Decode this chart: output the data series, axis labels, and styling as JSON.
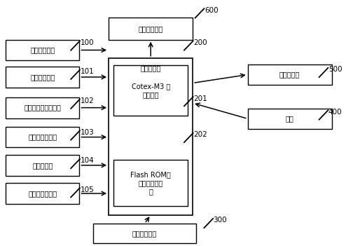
{
  "left_blocks": [
    {
      "label": "风速测量模块",
      "row": 0
    },
    {
      "label": "风向测量模块",
      "row": 1
    },
    {
      "label": "超声波距离测量模块",
      "row": 2
    },
    {
      "label": "干、湿度传感器",
      "row": 3
    },
    {
      "label": "温度传感器",
      "row": 4
    },
    {
      "label": "大气压力传感器",
      "row": 5
    }
  ],
  "comm_label": "通信接口模块",
  "embedded_label": "嵌入式系统",
  "cortex_label": "Cotex-M3 内\n核处理器",
  "flash_label": "Flash ROM：\n风速系数修正\n表",
  "power_label": "本安电源供电",
  "display_label": "数码管显示",
  "keyboard_label": "键盘",
  "ref_nums": [
    "100",
    "101",
    "102",
    "103",
    "104",
    "105",
    "200",
    "201",
    "202",
    "300",
    "400",
    "500",
    "600"
  ],
  "bg_color": "#ffffff"
}
